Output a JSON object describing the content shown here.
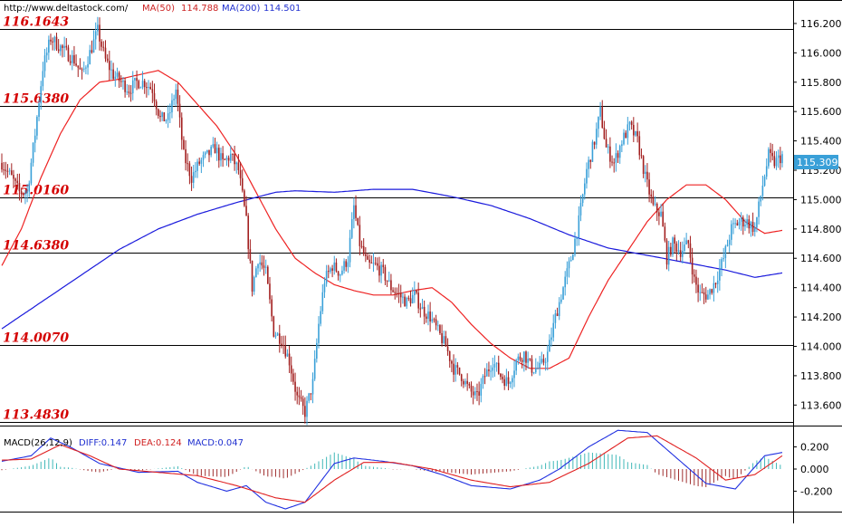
{
  "header": {
    "site": "http://www.deltastock.com/",
    "ma50_label": "MA(50)",
    "ma50_value": "114.788",
    "ma200_label": "MA(200)",
    "ma200_value": "114.501",
    "current_price": "115.309"
  },
  "macd_header": {
    "label": "MACD(26,12,9)",
    "diff": "DIFF:0.147",
    "dea": "DEA:0.124",
    "macd": "MACD:0.047"
  },
  "colors": {
    "bull": "#3aa0d8",
    "bear": "#a32020",
    "ma50": "#ee2222",
    "ma200": "#1a1adc",
    "level_label": "#d40000",
    "diff": "#2030e0",
    "dea": "#e02020",
    "hist_pos": "#40b8b8",
    "hist_neg": "#a03030"
  },
  "chart_data": [
    {
      "type": "candlestick",
      "price_axis": {
        "ylim": [
          113.46,
          116.36
        ],
        "ticks": [
          "116.200",
          "116.000",
          "115.800",
          "115.600",
          "115.400",
          "115.200",
          "115.000",
          "114.800",
          "114.600",
          "114.400",
          "114.200",
          "114.000",
          "113.800",
          "113.600"
        ]
      },
      "levels": [
        {
          "label": "116.1643",
          "value": 116.1643
        },
        {
          "label": "115.6380",
          "value": 115.638
        },
        {
          "label": "115.0160",
          "value": 115.016
        },
        {
          "label": "114.6380",
          "value": 114.638
        },
        {
          "label": "114.0070",
          "value": 114.007
        },
        {
          "label": "113.4830",
          "value": 113.483
        }
      ],
      "close_anchors": [
        [
          0,
          115.25
        ],
        [
          5,
          115.15
        ],
        [
          9,
          115.05
        ],
        [
          13,
          115.05
        ],
        [
          17,
          115.45
        ],
        [
          21,
          115.9
        ],
        [
          25,
          116.1
        ],
        [
          29,
          116.05
        ],
        [
          33,
          116.0
        ],
        [
          37,
          115.95
        ],
        [
          41,
          115.85
        ],
        [
          45,
          116.0
        ],
        [
          49,
          116.15
        ],
        [
          53,
          115.95
        ],
        [
          57,
          115.85
        ],
        [
          61,
          115.8
        ],
        [
          65,
          115.75
        ],
        [
          69,
          115.8
        ],
        [
          73,
          115.8
        ],
        [
          77,
          115.75
        ],
        [
          81,
          115.55
        ],
        [
          85,
          115.55
        ],
        [
          89,
          115.75
        ],
        [
          93,
          115.3
        ],
        [
          97,
          115.15
        ],
        [
          101,
          115.25
        ],
        [
          105,
          115.3
        ],
        [
          109,
          115.35
        ],
        [
          113,
          115.25
        ],
        [
          117,
          115.3
        ],
        [
          121,
          115.2
        ],
        [
          125,
          114.85
        ],
        [
          128,
          114.4
        ],
        [
          131,
          114.6
        ],
        [
          135,
          114.5
        ],
        [
          139,
          114.1
        ],
        [
          143,
          114.05
        ],
        [
          147,
          113.9
        ],
        [
          151,
          113.65
        ],
        [
          155,
          113.55
        ],
        [
          159,
          113.75
        ],
        [
          162,
          114.15
        ],
        [
          165,
          114.45
        ],
        [
          169,
          114.55
        ],
        [
          173,
          114.5
        ],
        [
          177,
          114.6
        ],
        [
          180,
          114.95
        ],
        [
          183,
          114.7
        ],
        [
          187,
          114.55
        ],
        [
          191,
          114.55
        ],
        [
          195,
          114.5
        ],
        [
          199,
          114.4
        ],
        [
          203,
          114.35
        ],
        [
          207,
          114.3
        ],
        [
          211,
          114.35
        ],
        [
          215,
          114.25
        ],
        [
          219,
          114.2
        ],
        [
          223,
          114.1
        ],
        [
          227,
          114.0
        ],
        [
          231,
          113.85
        ],
        [
          235,
          113.8
        ],
        [
          239,
          113.7
        ],
        [
          243,
          113.65
        ],
        [
          247,
          113.8
        ],
        [
          251,
          113.9
        ],
        [
          255,
          113.8
        ],
        [
          259,
          113.75
        ],
        [
          263,
          113.9
        ],
        [
          267,
          113.95
        ],
        [
          271,
          113.85
        ],
        [
          275,
          113.85
        ],
        [
          279,
          113.95
        ],
        [
          283,
          114.2
        ],
        [
          287,
          114.4
        ],
        [
          291,
          114.6
        ],
        [
          295,
          114.85
        ],
        [
          299,
          115.2
        ],
        [
          303,
          115.4
        ],
        [
          306,
          115.6
        ],
        [
          309,
          115.35
        ],
        [
          313,
          115.25
        ],
        [
          317,
          115.4
        ],
        [
          321,
          115.5
        ],
        [
          325,
          115.4
        ],
        [
          329,
          115.15
        ],
        [
          333,
          114.95
        ],
        [
          337,
          114.9
        ],
        [
          340,
          114.6
        ],
        [
          343,
          114.7
        ],
        [
          347,
          114.65
        ],
        [
          351,
          114.7
        ],
        [
          354,
          114.45
        ],
        [
          357,
          114.35
        ],
        [
          361,
          114.35
        ],
        [
          365,
          114.45
        ],
        [
          369,
          114.6
        ],
        [
          373,
          114.8
        ],
        [
          377,
          114.85
        ],
        [
          381,
          114.85
        ],
        [
          385,
          114.8
        ],
        [
          389,
          115.1
        ],
        [
          392,
          115.3
        ],
        [
          395,
          115.25
        ],
        [
          399,
          115.3
        ]
      ],
      "ma50_anchors": [
        [
          0,
          114.55
        ],
        [
          10,
          114.8
        ],
        [
          20,
          115.15
        ],
        [
          30,
          115.45
        ],
        [
          40,
          115.68
        ],
        [
          50,
          115.8
        ],
        [
          60,
          115.82
        ],
        [
          70,
          115.85
        ],
        [
          80,
          115.88
        ],
        [
          90,
          115.8
        ],
        [
          100,
          115.65
        ],
        [
          110,
          115.5
        ],
        [
          120,
          115.3
        ],
        [
          130,
          115.05
        ],
        [
          140,
          114.8
        ],
        [
          150,
          114.6
        ],
        [
          160,
          114.5
        ],
        [
          170,
          114.42
        ],
        [
          180,
          114.38
        ],
        [
          190,
          114.35
        ],
        [
          200,
          114.35
        ],
        [
          210,
          114.38
        ],
        [
          220,
          114.4
        ],
        [
          230,
          114.3
        ],
        [
          240,
          114.15
        ],
        [
          250,
          114.02
        ],
        [
          260,
          113.92
        ],
        [
          270,
          113.85
        ],
        [
          280,
          113.85
        ],
        [
          290,
          113.92
        ],
        [
          300,
          114.2
        ],
        [
          310,
          114.45
        ],
        [
          320,
          114.65
        ],
        [
          330,
          114.85
        ],
        [
          340,
          115.0
        ],
        [
          350,
          115.1
        ],
        [
          360,
          115.1
        ],
        [
          370,
          115.0
        ],
        [
          380,
          114.85
        ],
        [
          390,
          114.77
        ],
        [
          399,
          114.79
        ]
      ],
      "ma200_anchors": [
        [
          0,
          114.12
        ],
        [
          20,
          114.3
        ],
        [
          40,
          114.48
        ],
        [
          60,
          114.66
        ],
        [
          80,
          114.8
        ],
        [
          100,
          114.9
        ],
        [
          120,
          114.98
        ],
        [
          140,
          115.05
        ],
        [
          150,
          115.06
        ],
        [
          170,
          115.05
        ],
        [
          190,
          115.07
        ],
        [
          210,
          115.07
        ],
        [
          230,
          115.02
        ],
        [
          250,
          114.96
        ],
        [
          270,
          114.87
        ],
        [
          290,
          114.76
        ],
        [
          310,
          114.67
        ],
        [
          330,
          114.62
        ],
        [
          350,
          114.57
        ],
        [
          370,
          114.52
        ],
        [
          385,
          114.47
        ],
        [
          399,
          114.5
        ]
      ]
    },
    {
      "type": "macd",
      "ylim": [
        -0.36,
        0.36
      ],
      "ticks": [
        "0.200",
        "0.000",
        "-0.200"
      ],
      "diff_anchors": [
        [
          0,
          0.07
        ],
        [
          15,
          0.12
        ],
        [
          25,
          0.28
        ],
        [
          35,
          0.2
        ],
        [
          50,
          0.05
        ],
        [
          70,
          -0.03
        ],
        [
          90,
          -0.02
        ],
        [
          100,
          -0.12
        ],
        [
          115,
          -0.2
        ],
        [
          125,
          -0.15
        ],
        [
          135,
          -0.3
        ],
        [
          145,
          -0.36
        ],
        [
          155,
          -0.3
        ],
        [
          170,
          0.05
        ],
        [
          180,
          0.1
        ],
        [
          195,
          0.07
        ],
        [
          210,
          0.03
        ],
        [
          225,
          -0.05
        ],
        [
          240,
          -0.15
        ],
        [
          260,
          -0.18
        ],
        [
          275,
          -0.1
        ],
        [
          285,
          0.0
        ],
        [
          300,
          0.2
        ],
        [
          315,
          0.35
        ],
        [
          330,
          0.33
        ],
        [
          345,
          0.1
        ],
        [
          360,
          -0.13
        ],
        [
          375,
          -0.18
        ],
        [
          390,
          0.12
        ],
        [
          399,
          0.15
        ]
      ],
      "dea_anchors": [
        [
          0,
          0.08
        ],
        [
          15,
          0.09
        ],
        [
          30,
          0.22
        ],
        [
          45,
          0.12
        ],
        [
          60,
          0.0
        ],
        [
          80,
          -0.03
        ],
        [
          100,
          -0.06
        ],
        [
          120,
          -0.15
        ],
        [
          140,
          -0.26
        ],
        [
          155,
          -0.3
        ],
        [
          170,
          -0.1
        ],
        [
          185,
          0.06
        ],
        [
          200,
          0.06
        ],
        [
          220,
          0.0
        ],
        [
          240,
          -0.1
        ],
        [
          260,
          -0.16
        ],
        [
          280,
          -0.12
        ],
        [
          300,
          0.05
        ],
        [
          320,
          0.28
        ],
        [
          335,
          0.3
        ],
        [
          355,
          0.1
        ],
        [
          370,
          -0.1
        ],
        [
          385,
          -0.05
        ],
        [
          399,
          0.12
        ]
      ]
    }
  ]
}
